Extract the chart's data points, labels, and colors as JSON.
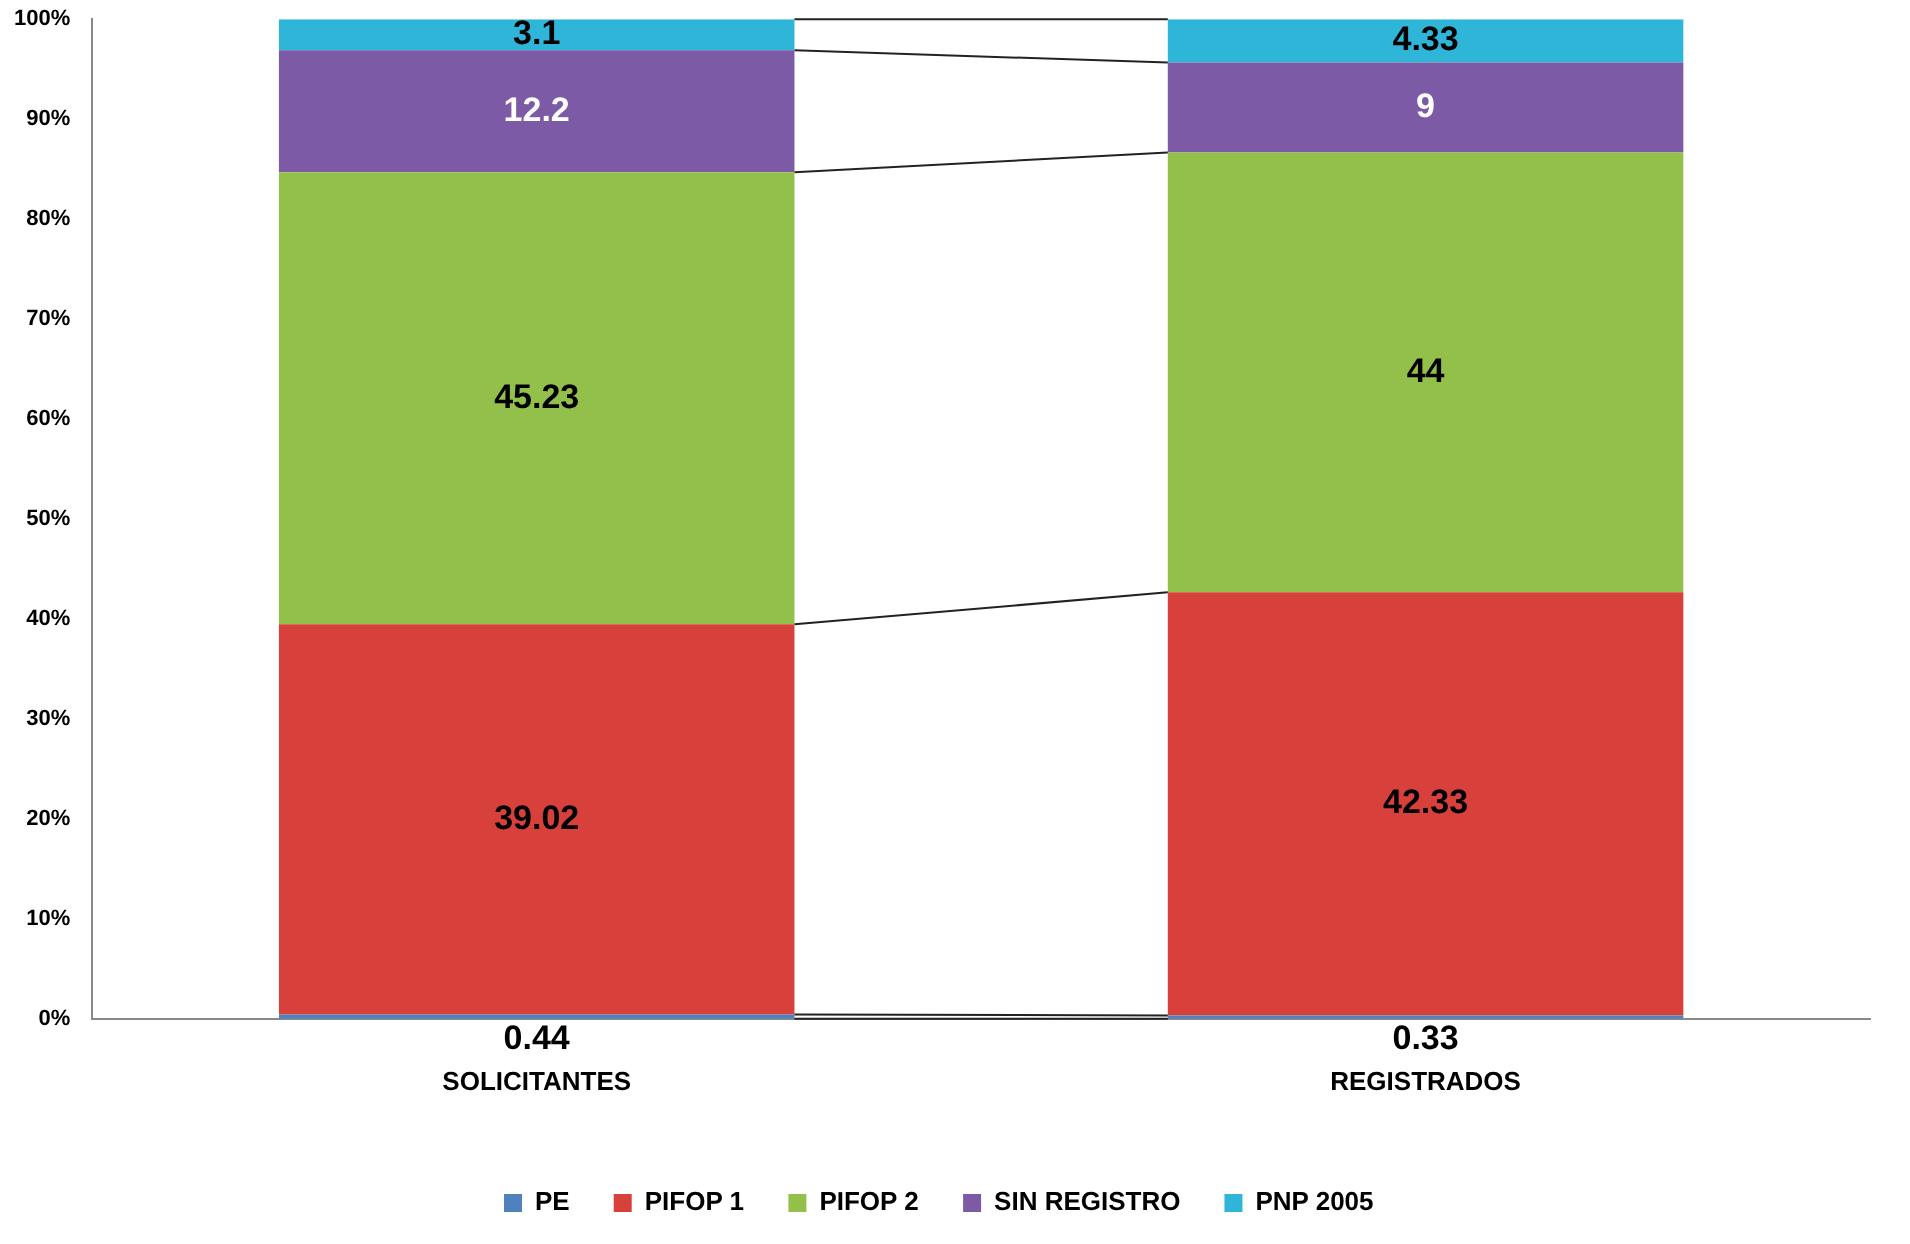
{
  "chart_data": {
    "type": "bar",
    "stacked": true,
    "categories": [
      "SOLICITANTES",
      "REGISTRADOS"
    ],
    "series": [
      {
        "name": "PE",
        "color": "#4f81bd",
        "values": [
          0.44,
          0.33
        ]
      },
      {
        "name": "PIFOP 1",
        "color": "#d8403c",
        "values": [
          39.02,
          42.33
        ]
      },
      {
        "name": "PIFOP 2",
        "color": "#93c04a",
        "values": [
          45.23,
          44
        ]
      },
      {
        "name": "SIN REGISTRO",
        "color": "#7d5aa6",
        "values": [
          12.2,
          9
        ]
      },
      {
        "name": "PNP 2005",
        "color": "#2fb5d8",
        "values": [
          3.1,
          4.33
        ]
      }
    ],
    "ylim": [
      0,
      100
    ],
    "yticks": [
      {
        "value": 0,
        "label": "0%"
      },
      {
        "value": 10,
        "label": "10%"
      },
      {
        "value": 20,
        "label": "20%"
      },
      {
        "value": 30,
        "label": "30%"
      },
      {
        "value": 40,
        "label": "40%"
      },
      {
        "value": 50,
        "label": "50%"
      },
      {
        "value": 60,
        "label": "60%"
      },
      {
        "value": 70,
        "label": "70%"
      },
      {
        "value": 80,
        "label": "80%"
      },
      {
        "value": 90,
        "label": "90%"
      },
      {
        "value": 100,
        "label": "100%"
      }
    ],
    "grid": false,
    "legend": "bottom",
    "data_labels": true
  }
}
